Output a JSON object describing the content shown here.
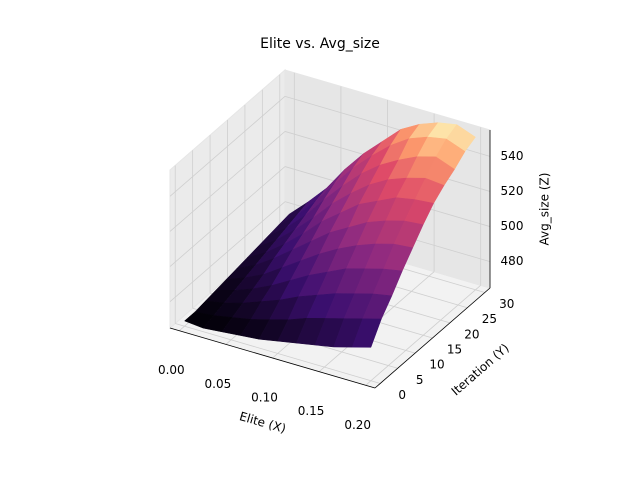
{
  "chart_data": {
    "type": "surface",
    "title": "Elite vs. Avg_size",
    "xlabel": "Elite (X)",
    "ylabel": "Iteration (Y)",
    "zlabel": "Avg_size (Z)",
    "colormap": "magma",
    "x": [
      0,
      0.02,
      0.04,
      0.06,
      0.08,
      0.1,
      0.12,
      0.14,
      0.16,
      0.18,
      0.2
    ],
    "y": [
      0,
      3,
      6,
      9,
      12,
      15,
      18,
      21,
      24,
      27,
      30
    ],
    "z": [
      [
        468,
        467,
        468,
        469,
        470,
        472,
        474,
        476,
        478,
        481,
        484
      ],
      [
        468,
        469,
        471,
        473,
        476,
        479,
        483,
        486,
        489,
        492,
        495
      ],
      [
        469,
        471,
        474,
        478,
        482,
        487,
        491,
        495,
        498,
        501,
        503
      ],
      [
        470,
        473,
        477,
        482,
        488,
        494,
        499,
        504,
        507,
        510,
        512
      ],
      [
        471,
        475,
        480,
        487,
        494,
        501,
        507,
        512,
        516,
        519,
        520
      ],
      [
        472,
        477,
        484,
        492,
        500,
        508,
        514,
        520,
        524,
        527,
        528
      ],
      [
        473,
        479,
        487,
        496,
        506,
        514,
        522,
        527,
        532,
        534,
        535
      ],
      [
        474,
        481,
        490,
        500,
        511,
        520,
        528,
        534,
        538,
        541,
        540
      ],
      [
        475,
        483,
        493,
        505,
        516,
        526,
        534,
        540,
        545,
        548,
        544
      ],
      [
        476,
        485,
        496,
        509,
        521,
        531,
        540,
        547,
        551,
        553,
        549
      ],
      [
        477,
        487,
        498,
        512,
        524,
        534,
        544,
        550,
        554,
        556,
        552
      ]
    ],
    "xlim": [
      -0.01,
      0.21
    ],
    "ylim": [
      -1.5,
      31.5
    ],
    "zlim": [
      465,
      555
    ],
    "xticks": [
      {
        "value": 0,
        "label": "0.00"
      },
      0.05,
      {
        "value": 0.1,
        "label": "0.10"
      },
      0.15,
      {
        "value": 0.2,
        "label": "0.20"
      }
    ],
    "yticks": [
      0,
      5,
      10,
      15,
      20,
      25,
      30
    ],
    "zticks": [
      480,
      500,
      520,
      540
    ]
  }
}
